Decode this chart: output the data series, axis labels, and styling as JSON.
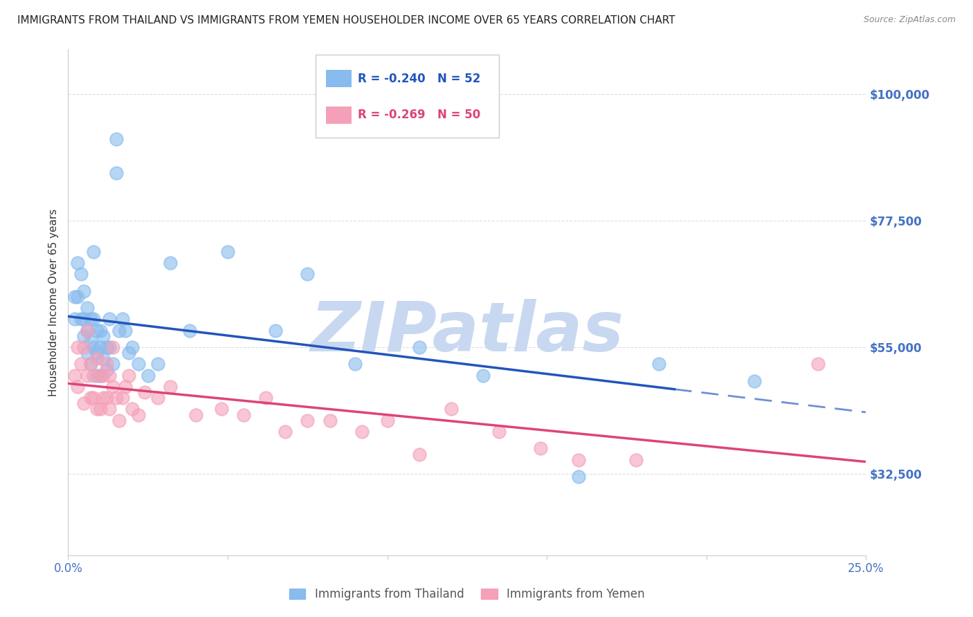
{
  "title": "IMMIGRANTS FROM THAILAND VS IMMIGRANTS FROM YEMEN HOUSEHOLDER INCOME OVER 65 YEARS CORRELATION CHART",
  "source": "Source: ZipAtlas.com",
  "ylabel": "Householder Income Over 65 years",
  "xlim": [
    0.0,
    0.25
  ],
  "ylim": [
    18000,
    108000
  ],
  "yticks": [
    32500,
    55000,
    77500,
    100000
  ],
  "ytick_labels": [
    "$32,500",
    "$55,000",
    "$77,500",
    "$100,000"
  ],
  "xticks": [
    0.0,
    0.05,
    0.1,
    0.15,
    0.2,
    0.25
  ],
  "xtick_labels": [
    "0.0%",
    "",
    "",
    "",
    "",
    "25.0%"
  ],
  "background_color": "#ffffff",
  "grid_color": "#dddddd",
  "thailand_color": "#88BBEE",
  "yemen_color": "#F4A0B8",
  "trend_blue": "#2255BB",
  "trend_pink": "#DD4477",
  "axis_label_color": "#4472C4",
  "legend_R_thailand": "R = -0.240",
  "legend_N_thailand": "N = 52",
  "legend_R_yemen": "R = -0.269",
  "legend_N_yemen": "N = 50",
  "label_thailand": "Immigrants from Thailand",
  "label_yemen": "Immigrants from Yemen",
  "watermark": "ZIPatlas",
  "watermark_color": "#C8D8F0",
  "thailand_x": [
    0.002,
    0.002,
    0.003,
    0.003,
    0.004,
    0.004,
    0.005,
    0.005,
    0.005,
    0.006,
    0.006,
    0.006,
    0.007,
    0.007,
    0.007,
    0.008,
    0.008,
    0.008,
    0.009,
    0.009,
    0.009,
    0.01,
    0.01,
    0.01,
    0.011,
    0.011,
    0.012,
    0.012,
    0.013,
    0.013,
    0.014,
    0.015,
    0.015,
    0.016,
    0.017,
    0.018,
    0.019,
    0.02,
    0.022,
    0.025,
    0.028,
    0.032,
    0.038,
    0.05,
    0.065,
    0.075,
    0.09,
    0.11,
    0.13,
    0.16,
    0.185,
    0.215
  ],
  "thailand_y": [
    64000,
    60000,
    70000,
    64000,
    68000,
    60000,
    65000,
    60000,
    57000,
    62000,
    58000,
    54000,
    60000,
    56000,
    52000,
    72000,
    60000,
    55000,
    58000,
    54000,
    50000,
    58000,
    55000,
    50000,
    57000,
    53000,
    55000,
    51000,
    60000,
    55000,
    52000,
    92000,
    86000,
    58000,
    60000,
    58000,
    54000,
    55000,
    52000,
    50000,
    52000,
    70000,
    58000,
    72000,
    58000,
    68000,
    52000,
    55000,
    50000,
    32000,
    52000,
    49000
  ],
  "yemen_x": [
    0.002,
    0.003,
    0.003,
    0.004,
    0.005,
    0.005,
    0.006,
    0.006,
    0.007,
    0.007,
    0.008,
    0.008,
    0.009,
    0.009,
    0.01,
    0.01,
    0.011,
    0.011,
    0.012,
    0.012,
    0.013,
    0.013,
    0.014,
    0.014,
    0.015,
    0.016,
    0.017,
    0.018,
    0.019,
    0.02,
    0.022,
    0.024,
    0.028,
    0.032,
    0.04,
    0.048,
    0.055,
    0.062,
    0.068,
    0.075,
    0.082,
    0.092,
    0.1,
    0.11,
    0.12,
    0.135,
    0.148,
    0.16,
    0.178,
    0.235
  ],
  "yemen_y": [
    50000,
    55000,
    48000,
    52000,
    55000,
    45000,
    58000,
    50000,
    52000,
    46000,
    50000,
    46000,
    53000,
    44000,
    50000,
    44000,
    50000,
    46000,
    52000,
    46000,
    50000,
    44000,
    55000,
    48000,
    46000,
    42000,
    46000,
    48000,
    50000,
    44000,
    43000,
    47000,
    46000,
    48000,
    43000,
    44000,
    43000,
    46000,
    40000,
    42000,
    42000,
    40000,
    42000,
    36000,
    44000,
    40000,
    37000,
    35000,
    35000,
    52000
  ],
  "title_fontsize": 11,
  "source_fontsize": 9,
  "ytick_fontsize": 12,
  "xtick_fontsize": 12,
  "ylabel_fontsize": 11,
  "dot_size": 180,
  "dot_alpha": 0.6
}
